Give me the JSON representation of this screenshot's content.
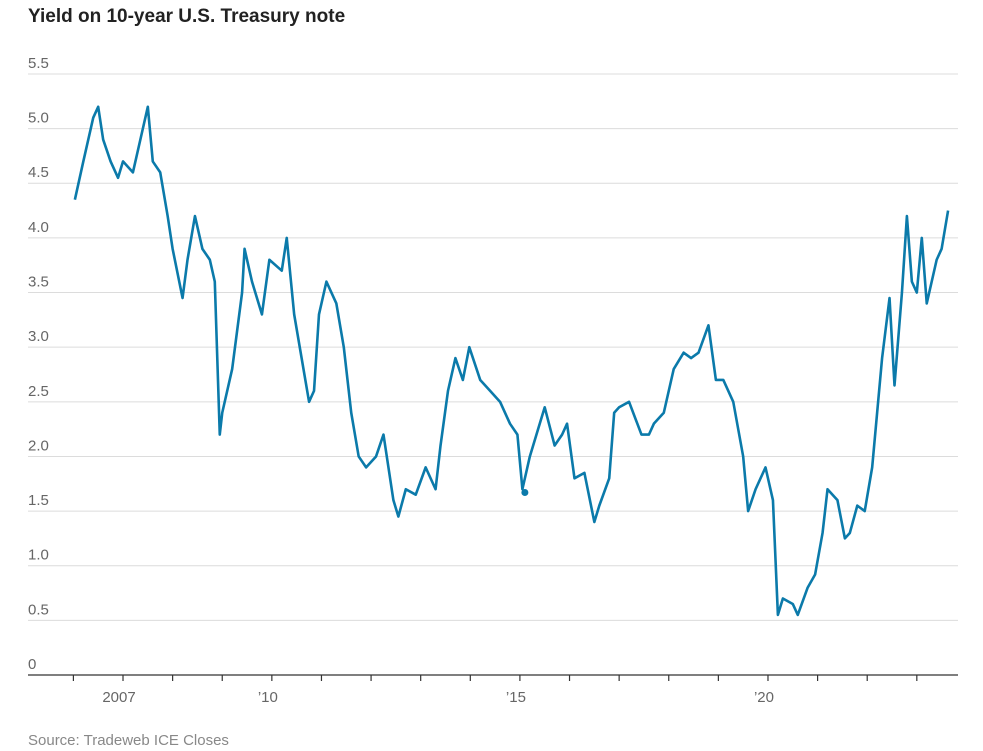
{
  "chart_data": {
    "type": "line",
    "title": "Yield on 10-year U.S. Treasury note",
    "source": "Source: Tradeweb ICE Closes",
    "color": "#0b7aaa",
    "x": [
      2006.03,
      2006.2,
      2006.4,
      2006.5,
      2006.6,
      2006.75,
      2006.9,
      2007.0,
      2007.2,
      2007.4,
      2007.5,
      2007.6,
      2007.75,
      2007.9,
      2008.0,
      2008.2,
      2008.3,
      2008.45,
      2008.6,
      2008.75,
      2008.85,
      2008.95,
      2009.0,
      2009.2,
      2009.4,
      2009.45,
      2009.6,
      2009.8,
      2009.95,
      2010.2,
      2010.3,
      2010.45,
      2010.6,
      2010.75,
      2010.85,
      2010.95,
      2011.1,
      2011.3,
      2011.45,
      2011.6,
      2011.75,
      2011.9,
      2012.1,
      2012.25,
      2012.45,
      2012.55,
      2012.7,
      2012.9,
      2013.1,
      2013.3,
      2013.4,
      2013.55,
      2013.7,
      2013.85,
      2013.98,
      2014.2,
      2014.4,
      2014.6,
      2014.8,
      2014.95,
      2015.05,
      2015.2,
      2015.4,
      2015.5,
      2015.7,
      2015.85,
      2015.95,
      2016.1,
      2016.3,
      2016.5,
      2016.6,
      2016.8,
      2016.9,
      2017.0,
      2017.2,
      2017.45,
      2017.6,
      2017.7,
      2017.9,
      2018.1,
      2018.3,
      2018.45,
      2018.6,
      2018.8,
      2018.95,
      2019.1,
      2019.3,
      2019.5,
      2019.6,
      2019.75,
      2019.95,
      2020.1,
      2020.2,
      2020.3,
      2020.5,
      2020.6,
      2020.8,
      2020.95,
      2021.1,
      2021.2,
      2021.4,
      2021.55,
      2021.65,
      2021.8,
      2021.95,
      2022.1,
      2022.2,
      2022.3,
      2022.45,
      2022.55,
      2022.7,
      2022.8,
      2022.9,
      2023.0,
      2023.1,
      2023.2,
      2023.4,
      2023.5,
      2023.63
    ],
    "values": [
      4.35,
      4.7,
      5.1,
      5.2,
      4.9,
      4.7,
      4.55,
      4.7,
      4.6,
      5.0,
      5.2,
      4.7,
      4.6,
      4.2,
      3.9,
      3.45,
      3.8,
      4.2,
      3.9,
      3.8,
      3.6,
      2.2,
      2.4,
      2.8,
      3.5,
      3.9,
      3.6,
      3.3,
      3.8,
      3.7,
      4.0,
      3.3,
      2.9,
      2.5,
      2.6,
      3.3,
      3.6,
      3.4,
      3.0,
      2.4,
      2.0,
      1.9,
      2.0,
      2.2,
      1.6,
      1.45,
      1.7,
      1.65,
      1.9,
      1.7,
      2.1,
      2.6,
      2.9,
      2.7,
      3.0,
      2.7,
      2.6,
      2.5,
      2.3,
      2.2,
      1.7,
      2.0,
      2.3,
      2.45,
      2.1,
      2.2,
      2.3,
      1.8,
      1.85,
      1.4,
      1.55,
      1.8,
      2.4,
      2.45,
      2.5,
      2.2,
      2.2,
      2.3,
      2.4,
      2.8,
      2.95,
      2.9,
      2.95,
      3.2,
      2.7,
      2.7,
      2.5,
      2.0,
      1.5,
      1.7,
      1.9,
      1.6,
      0.55,
      0.7,
      0.65,
      0.55,
      0.8,
      0.92,
      1.3,
      1.7,
      1.6,
      1.25,
      1.3,
      1.55,
      1.5,
      1.9,
      2.4,
      2.9,
      3.45,
      2.65,
      3.5,
      4.2,
      3.6,
      3.5,
      4.0,
      3.4,
      3.8,
      3.9,
      4.25
    ],
    "highlight": {
      "x": 2015.1,
      "value": 1.67
    },
    "xlim": [
      2005.085,
      2023.83
    ],
    "xticks": [
      {
        "value": 2007,
        "label": "2007"
      },
      {
        "value": 2010,
        "label": "’10"
      },
      {
        "value": 2015,
        "label": "’15"
      },
      {
        "value": 2020,
        "label": "’20"
      }
    ],
    "xminorticks": [
      2006,
      2007,
      2008,
      2009,
      2010,
      2011,
      2012,
      2013,
      2014,
      2015,
      2016,
      2017,
      2018,
      2019,
      2020,
      2021,
      2022,
      2023
    ],
    "ylim": [
      0,
      5.5
    ],
    "yticks": [
      0,
      0.5,
      {
        "value": 1,
        "label": "1.0"
      },
      1.5,
      {
        "value": 2,
        "label": "2.0"
      },
      2.5,
      {
        "value": 3,
        "label": "3.0"
      },
      3.5,
      {
        "value": 4,
        "label": "4.0"
      },
      4.5,
      {
        "value": 5,
        "label": "5.0"
      },
      5.5
    ],
    "grid": true
  }
}
